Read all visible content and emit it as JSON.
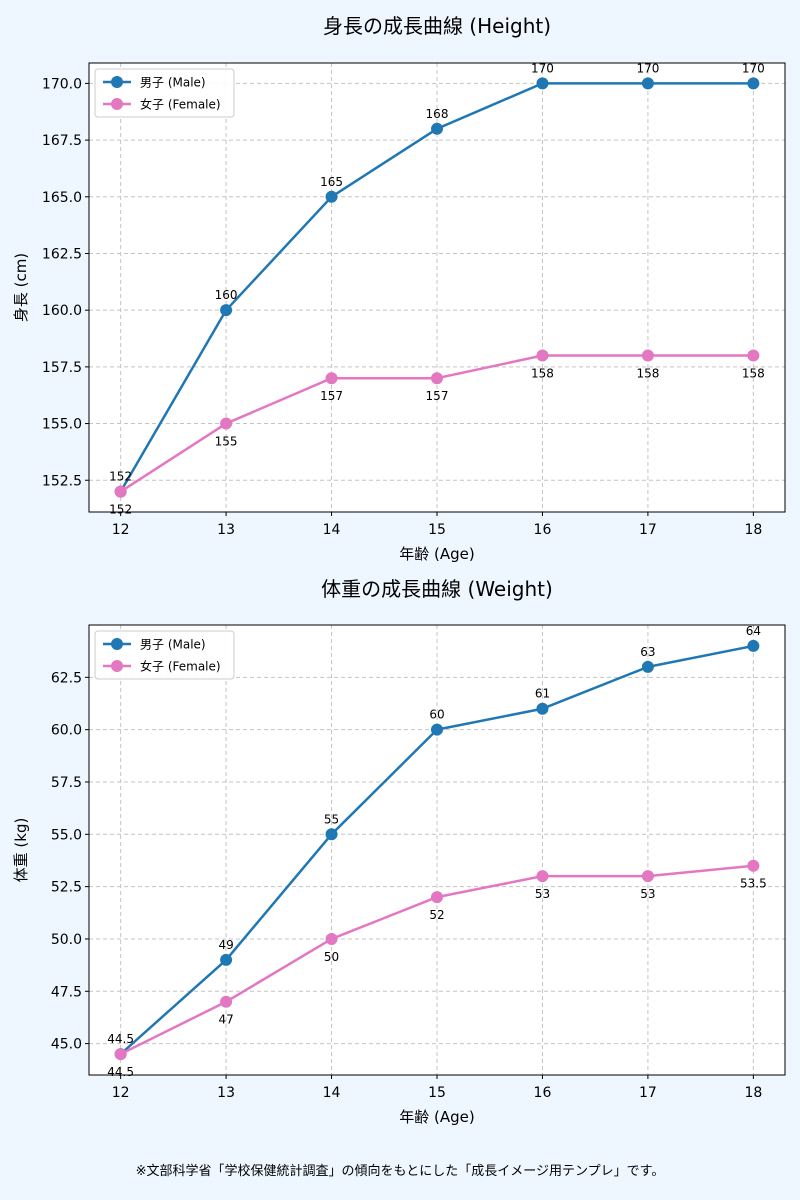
{
  "page": {
    "background": "#eef6ff"
  },
  "chart_data": [
    {
      "type": "line",
      "title": "身長の成長曲線 (Height)",
      "xlabel": "年齢 (Age)",
      "ylabel": "身長 (cm)",
      "x": [
        12,
        13,
        14,
        15,
        16,
        17,
        18
      ],
      "xlim": [
        11.7,
        18.3
      ],
      "ylim": [
        151.1,
        170.9
      ],
      "yticks": [
        152.5,
        155.0,
        157.5,
        160.0,
        162.5,
        165.0,
        167.5,
        170.0
      ],
      "ytick_labels": [
        "152.5",
        "155.0",
        "157.5",
        "160.0",
        "162.5",
        "165.0",
        "167.5",
        "170.0"
      ],
      "grid": true,
      "legend": "top-left",
      "series": [
        {
          "name": "男子 (Male)",
          "color": "#1f77b4",
          "values": [
            152,
            160,
            165,
            168,
            170,
            170,
            170
          ],
          "labels": [
            "152",
            "160",
            "165",
            "168",
            "170",
            "170",
            "170"
          ],
          "label_pos": "above"
        },
        {
          "name": "女子 (Female)",
          "color": "#e377c2",
          "values": [
            152,
            155,
            157,
            157,
            158,
            158,
            158
          ],
          "labels": [
            "152",
            "155",
            "157",
            "157",
            "158",
            "158",
            "158"
          ],
          "label_pos": "below"
        }
      ]
    },
    {
      "type": "line",
      "title": "体重の成長曲線 (Weight)",
      "xlabel": "年齢 (Age)",
      "ylabel": "体重 (kg)",
      "x": [
        12,
        13,
        14,
        15,
        16,
        17,
        18
      ],
      "xlim": [
        11.7,
        18.3
      ],
      "ylim": [
        43.5,
        65.0
      ],
      "yticks": [
        45.0,
        47.5,
        50.0,
        52.5,
        55.0,
        57.5,
        60.0,
        62.5
      ],
      "ytick_labels": [
        "45.0",
        "47.5",
        "50.0",
        "52.5",
        "55.0",
        "57.5",
        "60.0",
        "62.5"
      ],
      "grid": true,
      "legend": "top-left",
      "series": [
        {
          "name": "男子 (Male)",
          "color": "#1f77b4",
          "values": [
            44.5,
            49,
            55,
            60,
            61,
            63,
            64
          ],
          "labels": [
            "44.5",
            "49",
            "55",
            "60",
            "61",
            "63",
            "64"
          ],
          "label_pos": "above"
        },
        {
          "name": "女子 (Female)",
          "color": "#e377c2",
          "values": [
            44.5,
            47,
            50,
            52,
            53,
            53,
            53.5
          ],
          "labels": [
            "44.5",
            "47",
            "50",
            "52",
            "53",
            "53",
            "53.5"
          ],
          "label_pos": "below"
        }
      ]
    }
  ],
  "footnote": "※文部科学省「学校保健統計調査」の傾向をもとにした「成長イメージ用テンプレ」です。"
}
